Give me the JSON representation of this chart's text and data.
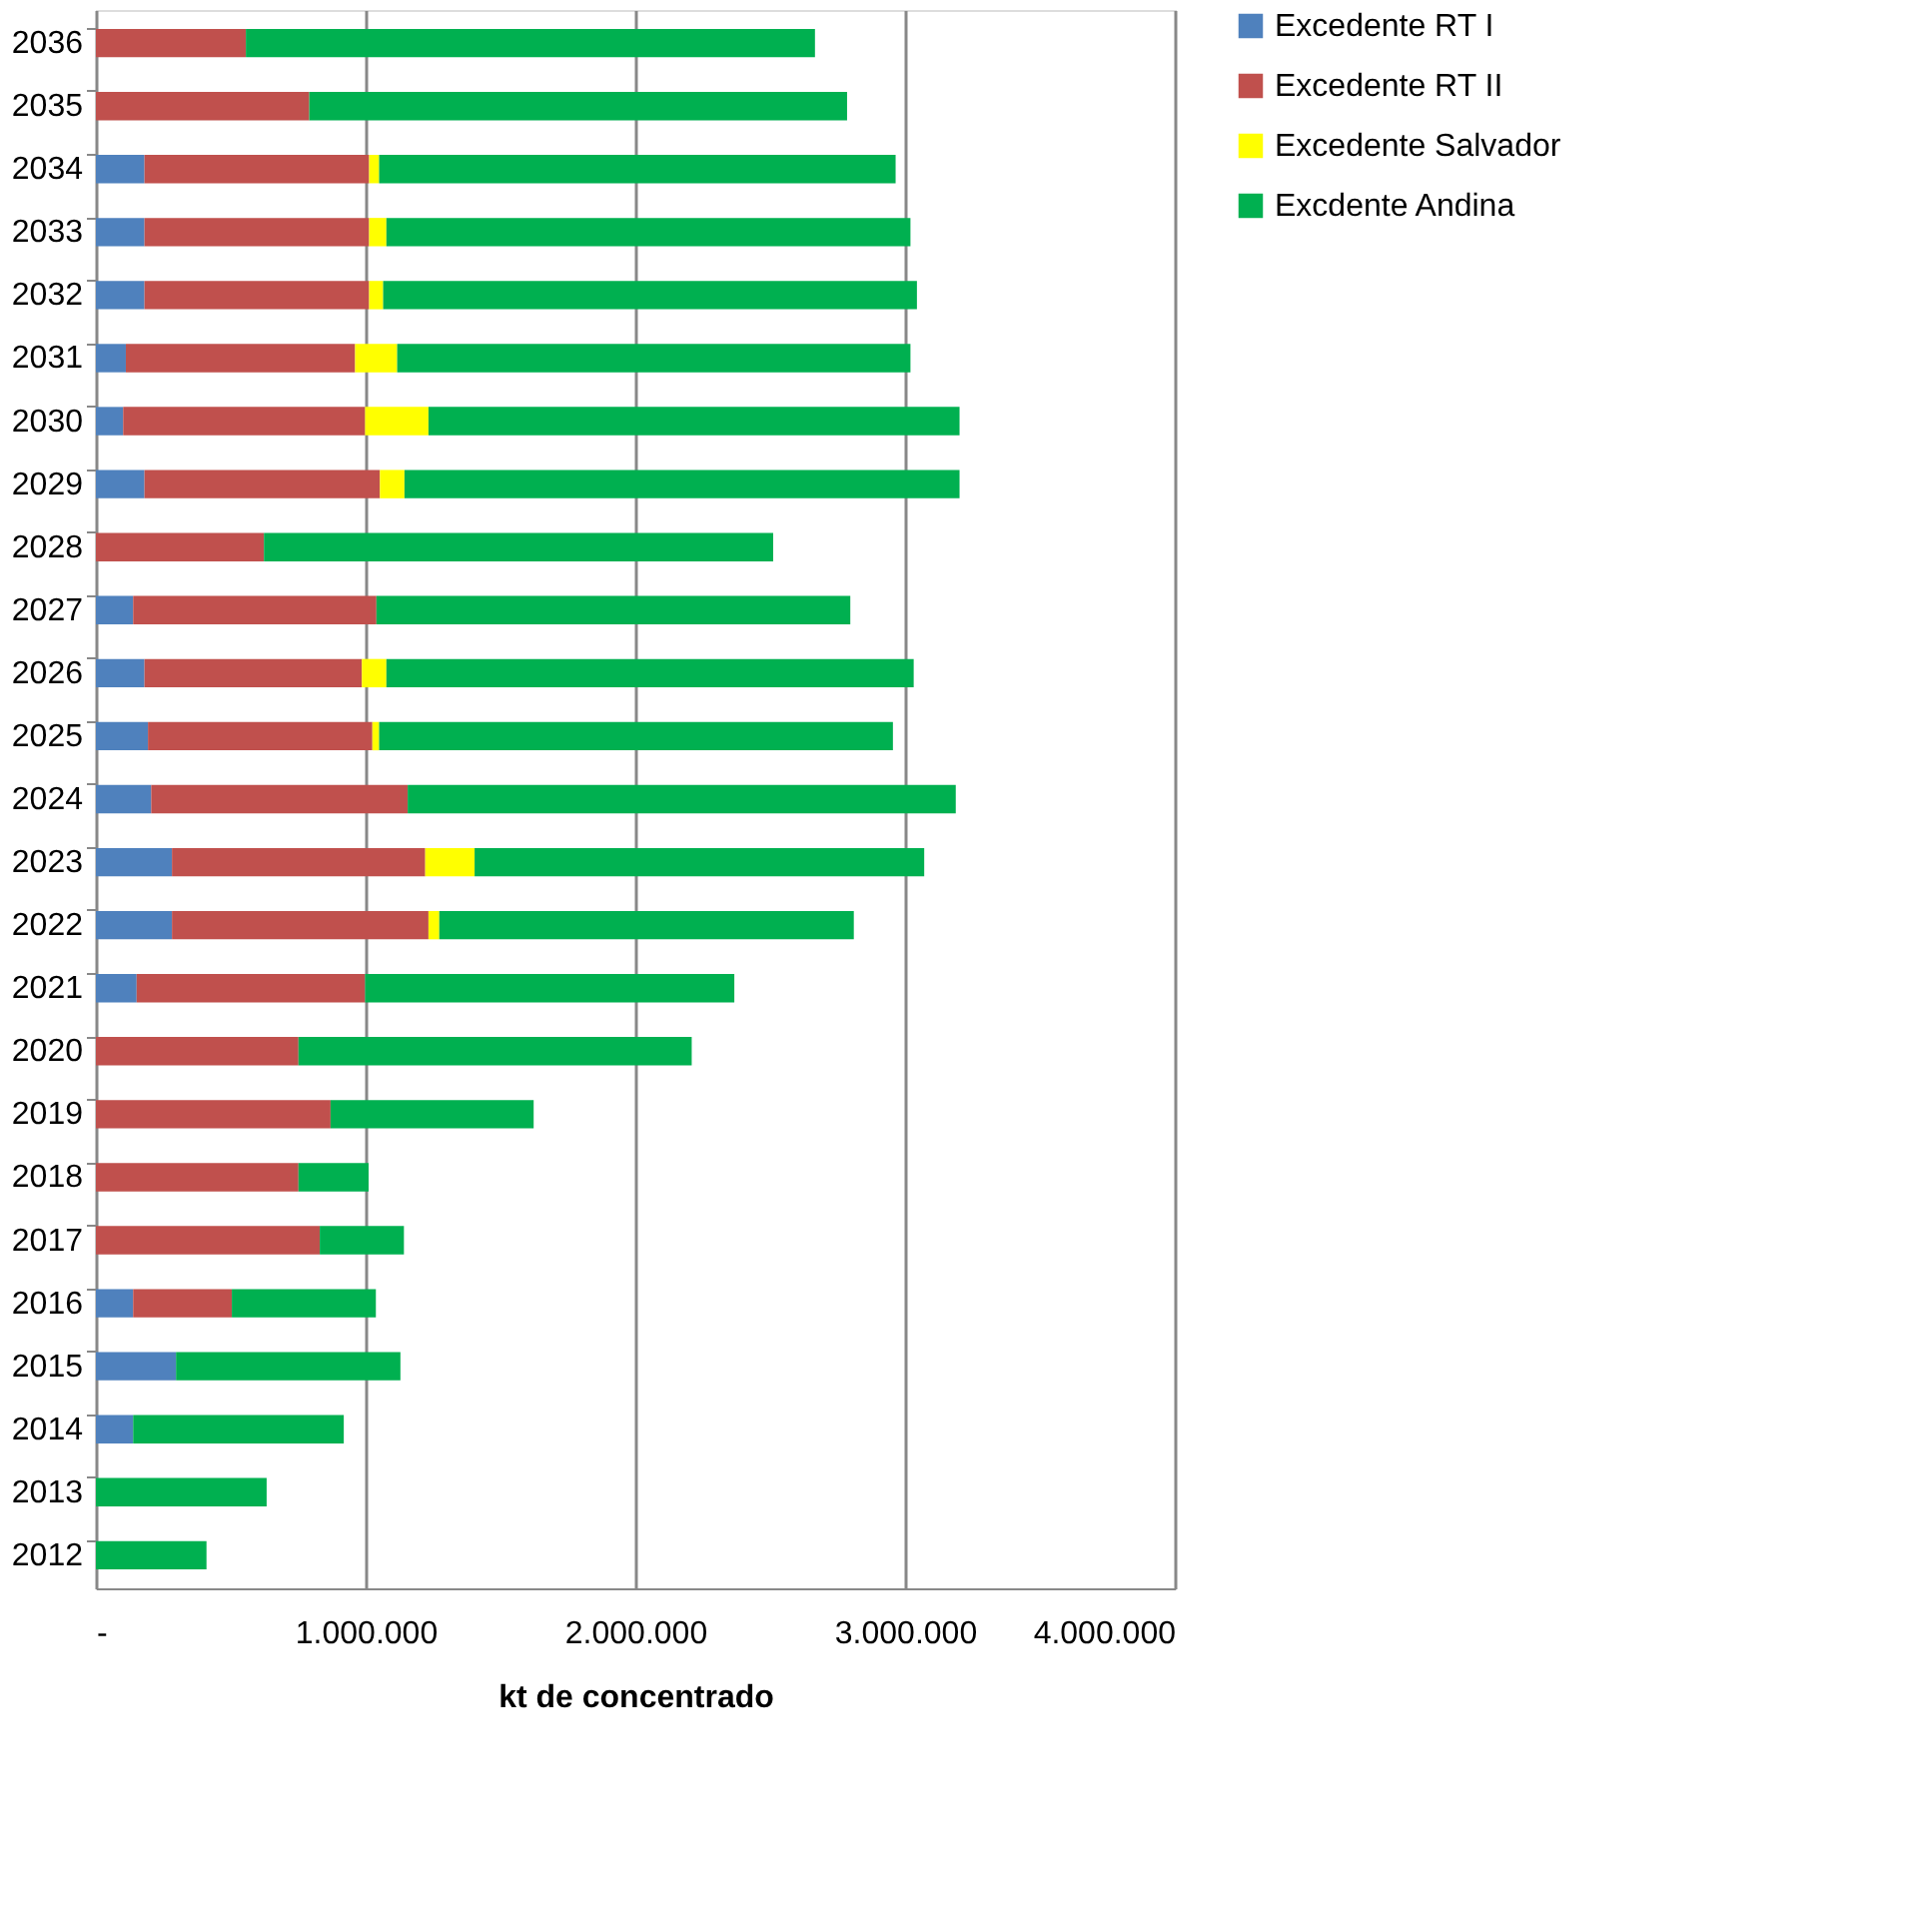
{
  "chart_data": {
    "type": "bar",
    "orientation": "horizontal",
    "stacked": true,
    "xlabel": "kt de concentrado",
    "categories": [
      "2036",
      "2035",
      "2034",
      "2033",
      "2032",
      "2031",
      "2030",
      "2029",
      "2028",
      "2027",
      "2026",
      "2025",
      "2024",
      "2023",
      "2022",
      "2021",
      "2020",
      "2019",
      "2018",
      "2017",
      "2016",
      "2015",
      "2014",
      "2013",
      "2012"
    ],
    "series": [
      {
        "name": "Excedente RT I",
        "color": "#4f81bd",
        "values": [
          null,
          null,
          180000,
          180000,
          180000,
          111000,
          101000,
          180000,
          null,
          138000,
          180000,
          193000,
          205000,
          282000,
          282000,
          151000,
          null,
          null,
          null,
          null,
          138000,
          297000,
          138000,
          null,
          null
        ]
      },
      {
        "name": "Excedente RT II",
        "color": "#c0504d",
        "values": [
          556000,
          791000,
          833000,
          833000,
          833000,
          850000,
          897000,
          873000,
          623000,
          902000,
          806000,
          832000,
          951000,
          939000,
          951000,
          847000,
          751000,
          870000,
          751000,
          830000,
          366000,
          null,
          null,
          null,
          null
        ]
      },
      {
        "name": "Excedente Salvador",
        "color": "#ffff00",
        "values": [
          null,
          null,
          37000,
          64000,
          52000,
          156000,
          235000,
          91000,
          null,
          null,
          91000,
          25000,
          null,
          183000,
          40000,
          null,
          null,
          null,
          null,
          null,
          null,
          null,
          null,
          null,
          null
        ]
      },
      {
        "name": "Excdente Andina",
        "color": "#00b050",
        "values": [
          2110000,
          1994000,
          1915000,
          1943000,
          1979000,
          1903000,
          1969000,
          2058000,
          1888000,
          1757000,
          1955000,
          1905000,
          2032000,
          1667000,
          1537000,
          1369000,
          1458000,
          753000,
          260000,
          312000,
          534000,
          832000,
          781000,
          633000,
          410000
        ]
      }
    ],
    "xlim": [
      0,
      4000000
    ],
    "xticks": [
      {
        "value": 0,
        "label": "-"
      },
      {
        "value": 1000000,
        "label": "1.000.000"
      },
      {
        "value": 2000000,
        "label": "2.000.000"
      },
      {
        "value": 3000000,
        "label": "3.000.000"
      },
      {
        "value": 4000000,
        "label": "4.000.000"
      }
    ],
    "grid": "x",
    "legend": "right"
  }
}
